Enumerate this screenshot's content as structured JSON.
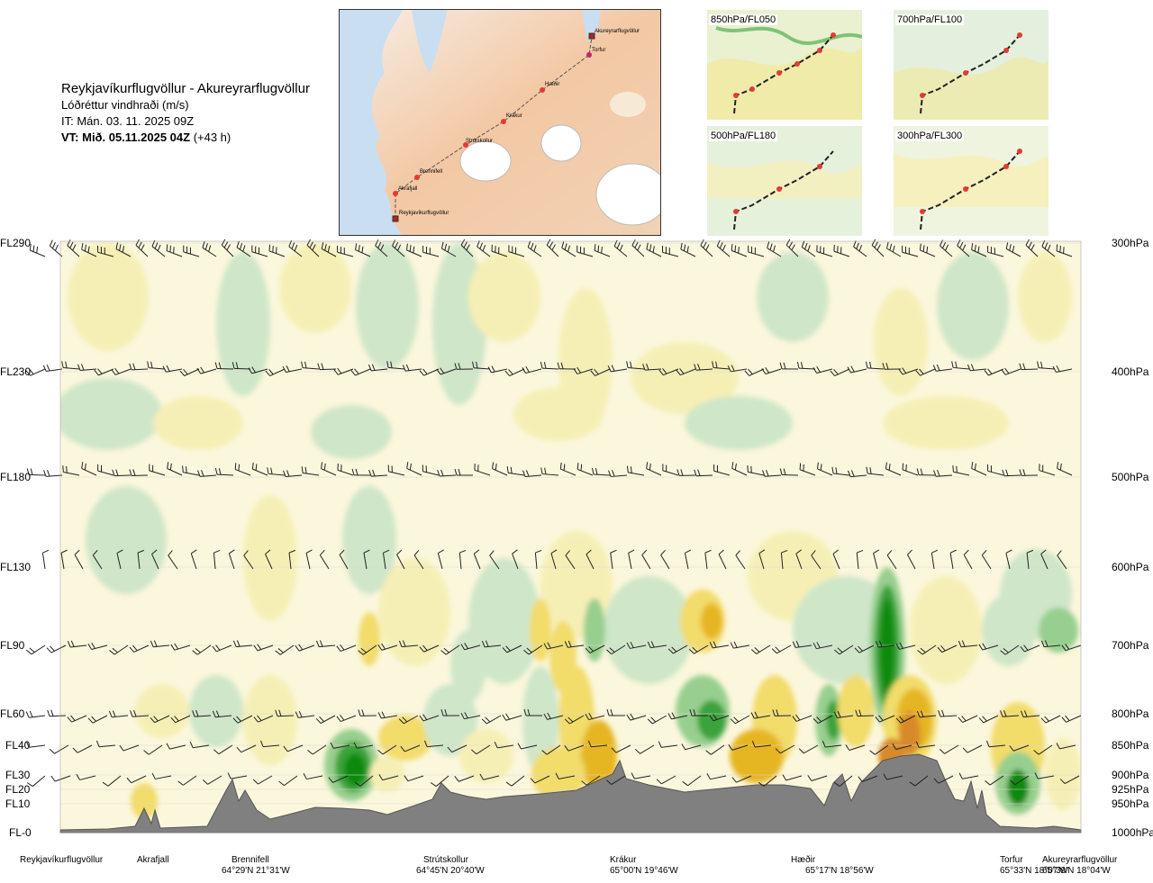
{
  "header": {
    "route": "Reykjavíkurflugvöllur - Akureyrarflugvöllur",
    "variable": "Lóðréttur vindhraði (m/s)",
    "issued": "IT: Mán. 03. 11. 2025 09Z",
    "valid_bold": "VT: Mið. 05.11.2025 04Z",
    "valid_offset": " (+43 h)"
  },
  "route_map": {
    "waypoints": [
      "Akureyrarflugvöllur",
      "Torfur",
      "Hæðir",
      "Krákur",
      "Strútskollur",
      "Brennifell",
      "Akrafjall",
      "Reykjavíkurflugvöllur"
    ]
  },
  "level_maps": [
    {
      "label": "850hPa/FL050"
    },
    {
      "label": "700hPa/FL100"
    },
    {
      "label": "500hPa/FL180"
    },
    {
      "label": "300hPa/FL300"
    }
  ],
  "left_levels": [
    "FL290",
    "FL230",
    "FL180",
    "FL130",
    "FL90",
    "FL60",
    "FL40",
    "FL30",
    "FL20",
    "FL10",
    "FL-0"
  ],
  "right_levels": [
    "300hPa",
    "400hPa",
    "500hPa",
    "600hPa",
    "700hPa",
    "800hPa",
    "850hPa",
    "900hPa",
    "925hPa",
    "950hPa",
    "1000hPa"
  ],
  "stations": [
    {
      "name": "Reykjavíkurflugvöllur",
      "coord": ""
    },
    {
      "name": "Akrafjall",
      "coord": ""
    },
    {
      "name": "Brennifell",
      "coord": "64°29'N 21°31'W"
    },
    {
      "name": "Strútskollur",
      "coord": "64°45'N 20°40'W"
    },
    {
      "name": "Krákur",
      "coord": "65°00'N 19°46'W"
    },
    {
      "name": "Hæðir",
      "coord": "65°17'N 18°56'W"
    },
    {
      "name": "Torfur",
      "coord": "65°33'N 18°07'W"
    },
    {
      "name": "Akureyrarflugvöllur",
      "coord": "65°39'N 18°04'W"
    }
  ],
  "colors": {
    "down_weak": "#cfe6c9",
    "down_mod": "#97cf8e",
    "down_strong": "#3ba33a",
    "down_extreme": "#0c8a0c",
    "up_weak": "#f6efb5",
    "up_mod": "#f2dc6a",
    "up_strong": "#e6b624",
    "up_extreme": "#d88a2a",
    "neutral": "#fbf7dc",
    "terrain": "#808080"
  },
  "chart_data": {
    "type": "heatmap",
    "title": "",
    "xlabel": "",
    "ylabel": "",
    "y_levels_left": [
      "FL-0",
      "FL10",
      "FL20",
      "FL30",
      "FL40",
      "FL60",
      "FL90",
      "FL130",
      "FL180",
      "FL230",
      "FL290"
    ],
    "y_levels_right": [
      "1000hPa",
      "950hPa",
      "925hPa",
      "900hPa",
      "850hPa",
      "800hPa",
      "700hPa",
      "600hPa",
      "500hPa",
      "400hPa",
      "300hPa"
    ],
    "x_stations": [
      "Reykjavíkurflugvöllur",
      "Akrafjall",
      "Brennifell",
      "Strútskollur",
      "Krákur",
      "Hæðir",
      "Torfur",
      "Akureyrarflugvöllur"
    ],
    "values_description": "vertical wind speed cross-section; green = negative, yellow/orange = positive",
    "grid": true
  }
}
